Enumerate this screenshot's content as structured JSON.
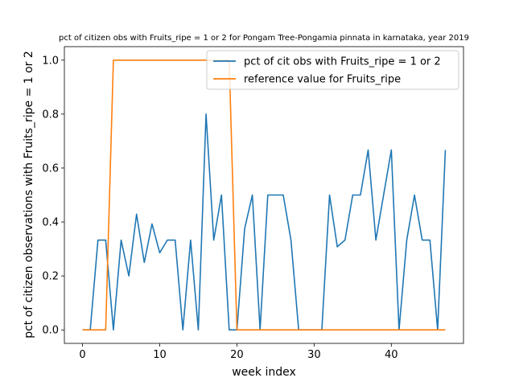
{
  "chart_data": {
    "type": "line",
    "title": "pct of citizen obs with Fruits_ripe = 1 or 2 for Pongam Tree-Pongamia pinnata in karnataka, year 2019",
    "xlabel": "week index",
    "ylabel": "pct of citizen observations with Fruits_ripe = 1 or 2",
    "xlim": [
      -2.35,
      49.35
    ],
    "ylim": [
      -0.05,
      1.05
    ],
    "xticks": [
      0,
      10,
      20,
      30,
      40
    ],
    "yticks": [
      0.0,
      0.2,
      0.4,
      0.6,
      0.8,
      1.0
    ],
    "ytick_labels": [
      "0.0",
      "0.2",
      "0.4",
      "0.6",
      "0.8",
      "1.0"
    ],
    "grid": false,
    "legend_position": "top-right",
    "x": [
      0,
      1,
      2,
      3,
      4,
      5,
      6,
      7,
      8,
      9,
      10,
      11,
      12,
      13,
      14,
      15,
      16,
      17,
      18,
      19,
      20,
      21,
      22,
      23,
      24,
      25,
      26,
      27,
      28,
      29,
      30,
      31,
      32,
      33,
      34,
      35,
      36,
      37,
      38,
      39,
      40,
      41,
      42,
      43,
      44,
      45,
      46,
      47
    ],
    "series": [
      {
        "name": "pct of cit obs with Fruits_ripe = 1 or 2",
        "color": "#1f77b4",
        "values": [
          0,
          0,
          0.333,
          0.333,
          0,
          0.333,
          0.2,
          0.429,
          0.25,
          0.393,
          0.286,
          0.333,
          0.333,
          0,
          0.333,
          0,
          0.8,
          0.333,
          0.5,
          0,
          0,
          0.375,
          0.5,
          0,
          0.5,
          0.5,
          0.5,
          0.333,
          0,
          0,
          0,
          0,
          0.5,
          0.308,
          0.333,
          0.5,
          0.5,
          0.667,
          0.333,
          0.5,
          0.667,
          0,
          0.333,
          0.5,
          0.333,
          0.333,
          0,
          0.667
        ]
      },
      {
        "name": "reference value for Fruits_ripe",
        "color": "#ff7f0e",
        "values": [
          0,
          0,
          0,
          0,
          1,
          1,
          1,
          1,
          1,
          1,
          1,
          1,
          1,
          1,
          1,
          1,
          1,
          1,
          1,
          1,
          0,
          0,
          0,
          0,
          0,
          0,
          0,
          0,
          0,
          0,
          0,
          0,
          0,
          0,
          0,
          0,
          0,
          0,
          0,
          0,
          0,
          0,
          0,
          0,
          0,
          0,
          0,
          0
        ]
      }
    ]
  }
}
